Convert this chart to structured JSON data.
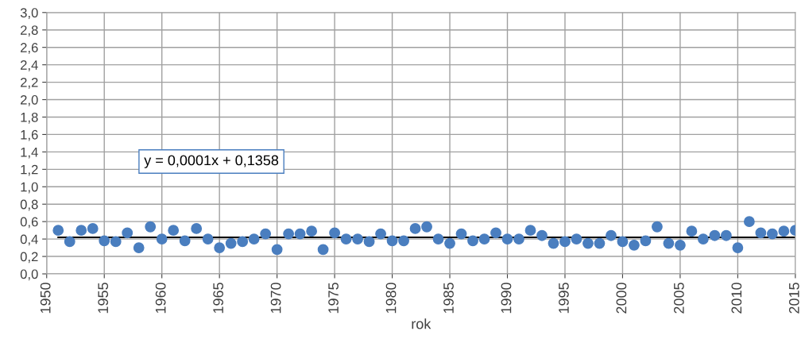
{
  "chart_data": {
    "type": "scatter",
    "xlabel": "rok",
    "xlim": [
      1950,
      2015
    ],
    "xticks": [
      1950,
      1955,
      1960,
      1965,
      1970,
      1975,
      1980,
      1985,
      1990,
      1995,
      2000,
      2005,
      2010,
      2015
    ],
    "ylim": [
      0,
      3
    ],
    "yticks": [
      {
        "value": 0,
        "label": "0,0"
      },
      {
        "value": 0.2,
        "label": "0,2"
      },
      {
        "value": 0.4,
        "label": "0,4"
      },
      {
        "value": 0.6,
        "label": "0,6"
      },
      {
        "value": 0.8,
        "label": "0,8"
      },
      {
        "value": 1.0,
        "label": "1,0"
      },
      {
        "value": 1.2,
        "label": "1,2"
      },
      {
        "value": 1.4,
        "label": "1,4"
      },
      {
        "value": 1.6,
        "label": "1,6"
      },
      {
        "value": 1.8,
        "label": "1,8"
      },
      {
        "value": 2.0,
        "label": "2,0"
      },
      {
        "value": 2.2,
        "label": "2,2"
      },
      {
        "value": 2.4,
        "label": "2,4"
      },
      {
        "value": 2.6,
        "label": "2,6"
      },
      {
        "value": 2.8,
        "label": "2,8"
      },
      {
        "value": 3.0,
        "label": "3,0"
      }
    ],
    "grid": true,
    "legend": false,
    "annotations": [
      "y = 0,0001x + 0,1358"
    ],
    "series": [
      {
        "marker": "circle",
        "color": "#4a7ebf",
        "x": [
          1951,
          1952,
          1953,
          1954,
          1955,
          1956,
          1957,
          1958,
          1959,
          1960,
          1961,
          1962,
          1963,
          1964,
          1965,
          1966,
          1967,
          1968,
          1969,
          1970,
          1971,
          1972,
          1973,
          1974,
          1975,
          1976,
          1977,
          1978,
          1979,
          1980,
          1981,
          1982,
          1983,
          1984,
          1985,
          1986,
          1987,
          1988,
          1989,
          1990,
          1991,
          1992,
          1993,
          1994,
          1995,
          1996,
          1997,
          1998,
          1999,
          2000,
          2001,
          2002,
          2003,
          2004,
          2005,
          2006,
          2007,
          2008,
          2009,
          2010,
          2011,
          2012,
          2013,
          2014,
          2015
        ],
        "values": [
          0.5,
          0.37,
          0.5,
          0.52,
          0.38,
          0.37,
          0.47,
          0.3,
          0.54,
          0.4,
          0.5,
          0.38,
          0.52,
          0.4,
          0.3,
          0.35,
          0.37,
          0.4,
          0.46,
          0.28,
          0.46,
          0.46,
          0.49,
          0.28,
          0.47,
          0.4,
          0.4,
          0.37,
          0.46,
          0.38,
          0.38,
          0.52,
          0.54,
          0.4,
          0.35,
          0.46,
          0.38,
          0.4,
          0.47,
          0.4,
          0.4,
          0.5,
          0.44,
          0.35,
          0.37,
          0.4,
          0.35,
          0.35,
          0.44,
          0.37,
          0.33,
          0.38,
          0.54,
          0.35,
          0.33,
          0.49,
          0.4,
          0.44,
          0.44,
          0.3,
          0.6,
          0.47,
          0.46,
          0.49,
          0.5
        ]
      },
      {
        "type": "line",
        "color": "#000000",
        "x": [
          1951,
          2015
        ],
        "values": [
          0.42,
          0.42
        ],
        "line_style": "solid"
      }
    ]
  }
}
